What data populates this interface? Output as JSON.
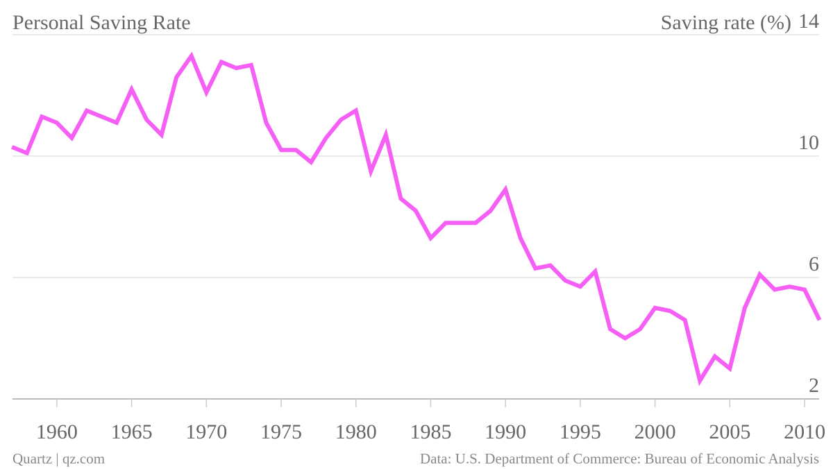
{
  "chart_data": {
    "type": "line",
    "title": "Personal Saving Rate",
    "y_label": "Saving rate (%)",
    "source": "Data: U.S. Department of Commerce: Bureau of Economic Analysis",
    "credit": "Quartz | qz.com",
    "x": [
      1957,
      1958,
      1959,
      1960,
      1961,
      1962,
      1963,
      1964,
      1965,
      1966,
      1967,
      1968,
      1969,
      1970,
      1971,
      1972,
      1973,
      1974,
      1975,
      1976,
      1977,
      1978,
      1979,
      1980,
      1981,
      1982,
      1983,
      1984,
      1985,
      1986,
      1987,
      1988,
      1989,
      1990,
      1991,
      1992,
      1993,
      1994,
      1995,
      1996,
      1997,
      1998,
      1999,
      2000,
      2001,
      2002,
      2003,
      2004,
      2005,
      2006,
      2007,
      2008,
      2009,
      2010,
      2011
    ],
    "series": [
      {
        "name": "Saving rate",
        "color": "#f65ff5",
        "values": [
          10.3,
          10.1,
          11.3,
          11.1,
          10.6,
          11.5,
          11.3,
          11.1,
          12.2,
          11.2,
          10.7,
          12.6,
          13.3,
          12.1,
          13.1,
          12.9,
          13.0,
          11.1,
          10.2,
          10.2,
          9.8,
          10.6,
          11.2,
          11.5,
          9.5,
          10.7,
          8.6,
          8.2,
          7.3,
          7.8,
          7.8,
          7.8,
          8.2,
          8.9,
          7.3,
          6.3,
          6.4,
          5.9,
          5.7,
          6.2,
          4.3,
          4.0,
          4.3,
          5.0,
          4.9,
          4.6,
          2.6,
          3.4,
          3.0,
          5.0,
          6.1,
          5.6,
          5.7,
          5.6,
          4.6
        ]
      }
    ],
    "xlim": [
      1956.2,
      2011.9
    ],
    "xticks": [
      1960,
      1965,
      1970,
      1975,
      1980,
      1985,
      1990,
      1995,
      2000,
      2005,
      2010
    ],
    "ylim": [
      2,
      14
    ],
    "yticks": [
      2,
      6,
      10,
      14
    ],
    "grid": true
  }
}
